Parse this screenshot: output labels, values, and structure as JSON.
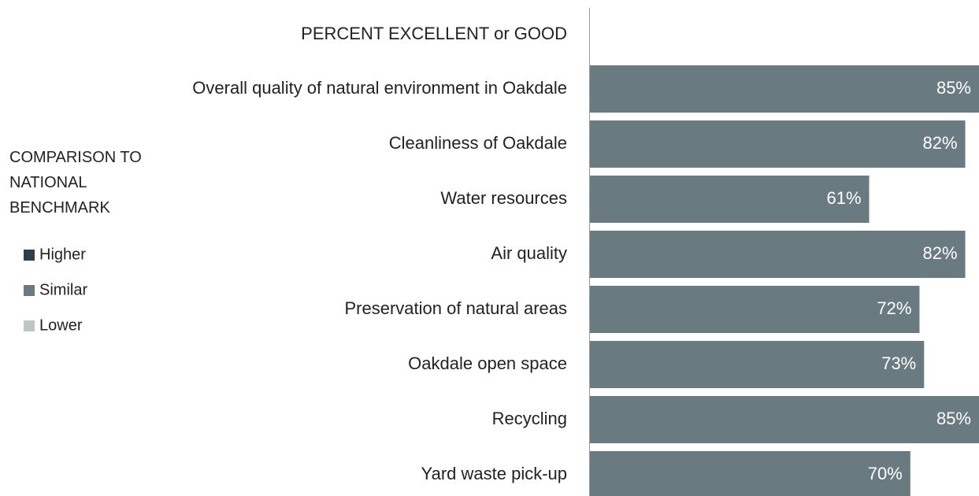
{
  "chart_data": {
    "type": "barh",
    "title": "PERCENT EXCELLENT or GOOD",
    "categories": [
      "Overall quality of natural environment in Oakdale",
      "Cleanliness of Oakdale",
      "Water resources",
      "Air quality",
      "Preservation of natural areas",
      "Oakdale open space",
      "Recycling",
      "Yard waste pick-up"
    ],
    "values": [
      85,
      82,
      61,
      82,
      72,
      73,
      85,
      70
    ],
    "value_labels": [
      "85%",
      "82%",
      "61%",
      "82%",
      "72%",
      "73%",
      "85%",
      "70%"
    ],
    "color": "#6a7a81",
    "xlim": [
      0,
      85
    ],
    "legend": {
      "title": "COMPARISON TO NATIONAL BENCHMARK",
      "items": [
        {
          "name": "Higher",
          "color": "#2e3f4b"
        },
        {
          "name": "Similar",
          "color": "#6a7a81"
        },
        {
          "name": "Lower",
          "color": "#bec7c8"
        }
      ]
    }
  }
}
